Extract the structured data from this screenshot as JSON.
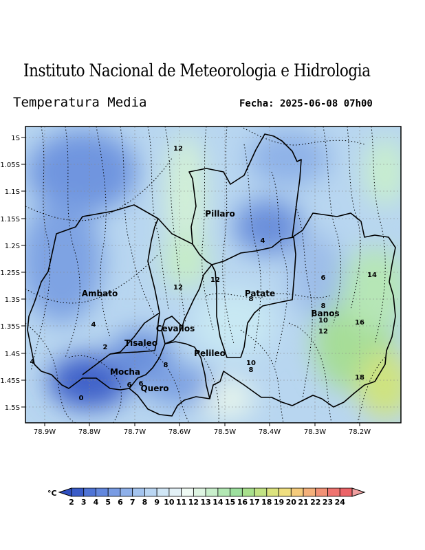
{
  "header": {
    "title": "Instituto Nacional de Meteorologia e Hidrologia",
    "subtitle": "Temperatura Media",
    "date": "Fecha: 2025-06-08 07h00"
  },
  "map": {
    "lat_ticks": [
      "1S",
      "1.05S",
      "1.1S",
      "1.15S",
      "1.2S",
      "1.25S",
      "1.3S",
      "1.35S",
      "1.4S",
      "1.45S",
      "1.5S"
    ],
    "lon_ticks": [
      "78.9W",
      "78.8W",
      "78.7W",
      "78.6W",
      "78.5W",
      "78.4W",
      "78.3W",
      "78.2W"
    ],
    "places": [
      "Pillaro",
      "Ambato",
      "Patate",
      "Banos",
      "Cevallos",
      "Tisaleo",
      "Pelileo",
      "Mocha",
      "Quero"
    ],
    "contour_labels": [
      "12",
      "4",
      "12",
      "12",
      "6",
      "14",
      "8",
      "8",
      "10",
      "16",
      "12",
      "4",
      "2",
      "10",
      "8",
      "8",
      "4",
      "6",
      "6",
      "18",
      "0"
    ]
  },
  "colorbar": {
    "unit": "°C",
    "ticks": [
      "2",
      "3",
      "4",
      "5",
      "6",
      "7",
      "8",
      "9",
      "10",
      "11",
      "12",
      "13",
      "14",
      "15",
      "16",
      "17",
      "18",
      "19",
      "20",
      "21",
      "22",
      "23",
      "24"
    ],
    "colors": [
      "#3a5cc8",
      "#4f74d6",
      "#6388de",
      "#799ce4",
      "#8eb0ea",
      "#a4c4ef",
      "#bad6f3",
      "#d0e6f6",
      "#e3f1f7",
      "#effaf4",
      "#def5e2",
      "#c9efcc",
      "#b3e8b4",
      "#9de09e",
      "#a8e08c",
      "#c2e384",
      "#dce37e",
      "#f0df80",
      "#f5cb7c",
      "#f4b07a",
      "#f29276",
      "#ef7470",
      "#ec6468"
    ]
  }
}
